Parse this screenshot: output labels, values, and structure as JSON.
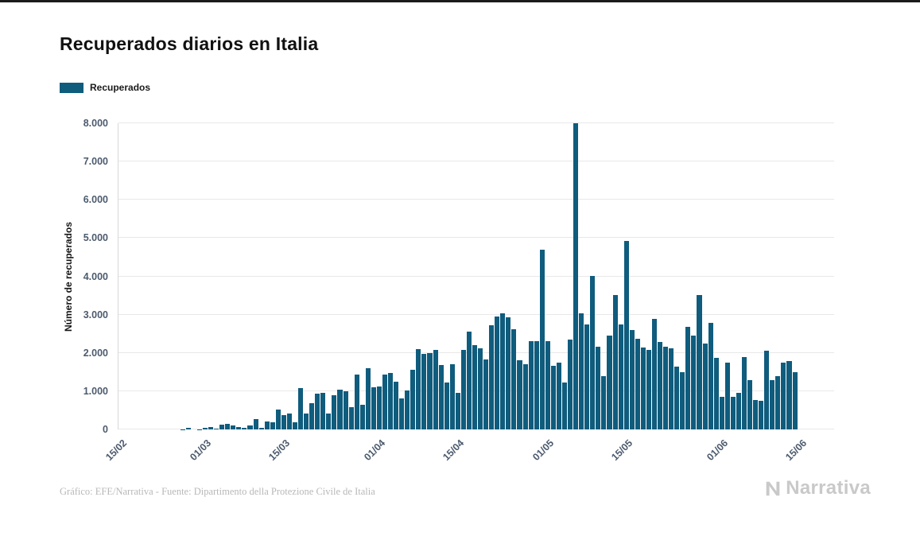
{
  "chart_data": {
    "type": "bar",
    "title": "Recuperados diarios en Italia",
    "legend": "Recuperados",
    "ylabel": "Número de recuperados",
    "ylim": [
      0,
      8000
    ],
    "bar_color": "#0f5c7d",
    "grid": true,
    "legend_position": "top-left",
    "yticks": [
      {
        "value": 0,
        "label": "0"
      },
      {
        "value": 1000,
        "label": "1.000"
      },
      {
        "value": 2000,
        "label": "2.000"
      },
      {
        "value": 3000,
        "label": "3.000"
      },
      {
        "value": 4000,
        "label": "4.000"
      },
      {
        "value": 5000,
        "label": "5.000"
      },
      {
        "value": 6000,
        "label": "6.000"
      },
      {
        "value": 7000,
        "label": "7.000"
      },
      {
        "value": 8000,
        "label": "8.000"
      }
    ],
    "xticks": [
      {
        "index": 0,
        "label": "15/02"
      },
      {
        "index": 15,
        "label": "01/03"
      },
      {
        "index": 29,
        "label": "15/03"
      },
      {
        "index": 46,
        "label": "01/04"
      },
      {
        "index": 60,
        "label": "15/04"
      },
      {
        "index": 76,
        "label": "01/05"
      },
      {
        "index": 90,
        "label": "15/05"
      },
      {
        "index": 107,
        "label": "01/06"
      },
      {
        "index": 121,
        "label": "15/06"
      }
    ],
    "categories": [
      "15/02",
      "16/02",
      "17/02",
      "18/02",
      "19/02",
      "20/02",
      "21/02",
      "22/02",
      "23/02",
      "24/02",
      "25/02",
      "26/02",
      "27/02",
      "28/02",
      "29/02",
      "01/03",
      "02/03",
      "03/03",
      "04/03",
      "05/03",
      "06/03",
      "07/03",
      "08/03",
      "09/03",
      "10/03",
      "11/03",
      "12/03",
      "13/03",
      "14/03",
      "15/03",
      "16/03",
      "17/03",
      "18/03",
      "19/03",
      "20/03",
      "21/03",
      "22/03",
      "23/03",
      "24/03",
      "25/03",
      "26/03",
      "27/03",
      "28/03",
      "29/03",
      "30/03",
      "31/03",
      "01/04",
      "02/04",
      "03/04",
      "04/04",
      "05/04",
      "06/04",
      "07/04",
      "08/04",
      "09/04",
      "10/04",
      "11/04",
      "12/04",
      "13/04",
      "14/04",
      "15/04",
      "16/04",
      "17/04",
      "18/04",
      "19/04",
      "20/04",
      "21/04",
      "22/04",
      "23/04",
      "24/04",
      "25/04",
      "26/04",
      "27/04",
      "28/04",
      "29/04",
      "30/04",
      "01/05",
      "02/05",
      "03/05",
      "04/05",
      "05/05",
      "06/05",
      "07/05",
      "08/05",
      "09/05",
      "10/05",
      "11/05",
      "12/05",
      "13/05",
      "14/05",
      "15/05",
      "16/05",
      "17/05",
      "18/05",
      "19/05",
      "20/05",
      "21/05",
      "22/05",
      "23/05",
      "24/05",
      "25/05",
      "26/05",
      "27/05",
      "28/05",
      "29/05",
      "30/05",
      "31/05",
      "01/06",
      "02/06",
      "03/06",
      "04/06",
      "05/06",
      "06/06",
      "07/06",
      "08/06",
      "09/06",
      "10/06",
      "11/06",
      "12/06",
      "13/06",
      "14/06"
    ],
    "values": [
      0,
      0,
      0,
      0,
      0,
      0,
      0,
      0,
      0,
      1,
      0,
      2,
      42,
      1,
      4,
      33,
      66,
      11,
      116,
      138,
      109,
      66,
      33,
      102,
      280,
      41,
      213,
      181,
      527,
      369,
      414,
      192,
      1084,
      415,
      689,
      943,
      952,
      408,
      894,
      1036,
      999,
      589,
      1434,
      646,
      1590,
      1109,
      1118,
      1431,
      1480,
      1238,
      819,
      1022,
      1555,
      2099,
      1979,
      1985,
      2079,
      1677,
      1224,
      1695,
      962,
      2072,
      2563,
      2200,
      2128,
      1822,
      2723,
      2943,
      3033,
      2922,
      2622,
      1808,
      1696,
      2317,
      2311,
      4693,
      2304,
      1665,
      1740,
      1225,
      2352,
      8014,
      3031,
      2747,
      4008,
      2155,
      1401,
      2452,
      3502,
      2747,
      4917,
      2605,
      2366,
      2150,
      2075,
      2881,
      2278,
      2160,
      2120,
      1639,
      1502,
      2677,
      2443,
      3503,
      2240,
      2789,
      1874,
      848,
      1737,
      846,
      957,
      1886,
      1297,
      759,
      747,
      2062,
      1293,
      1399,
      1747,
      1780,
      1505
    ]
  },
  "credit": {
    "text": "Gráfico: EFE/Narrativa - Fuente: Dipartimento della Protezione Civile de Italia"
  },
  "brand": {
    "name": "Narrativa"
  }
}
